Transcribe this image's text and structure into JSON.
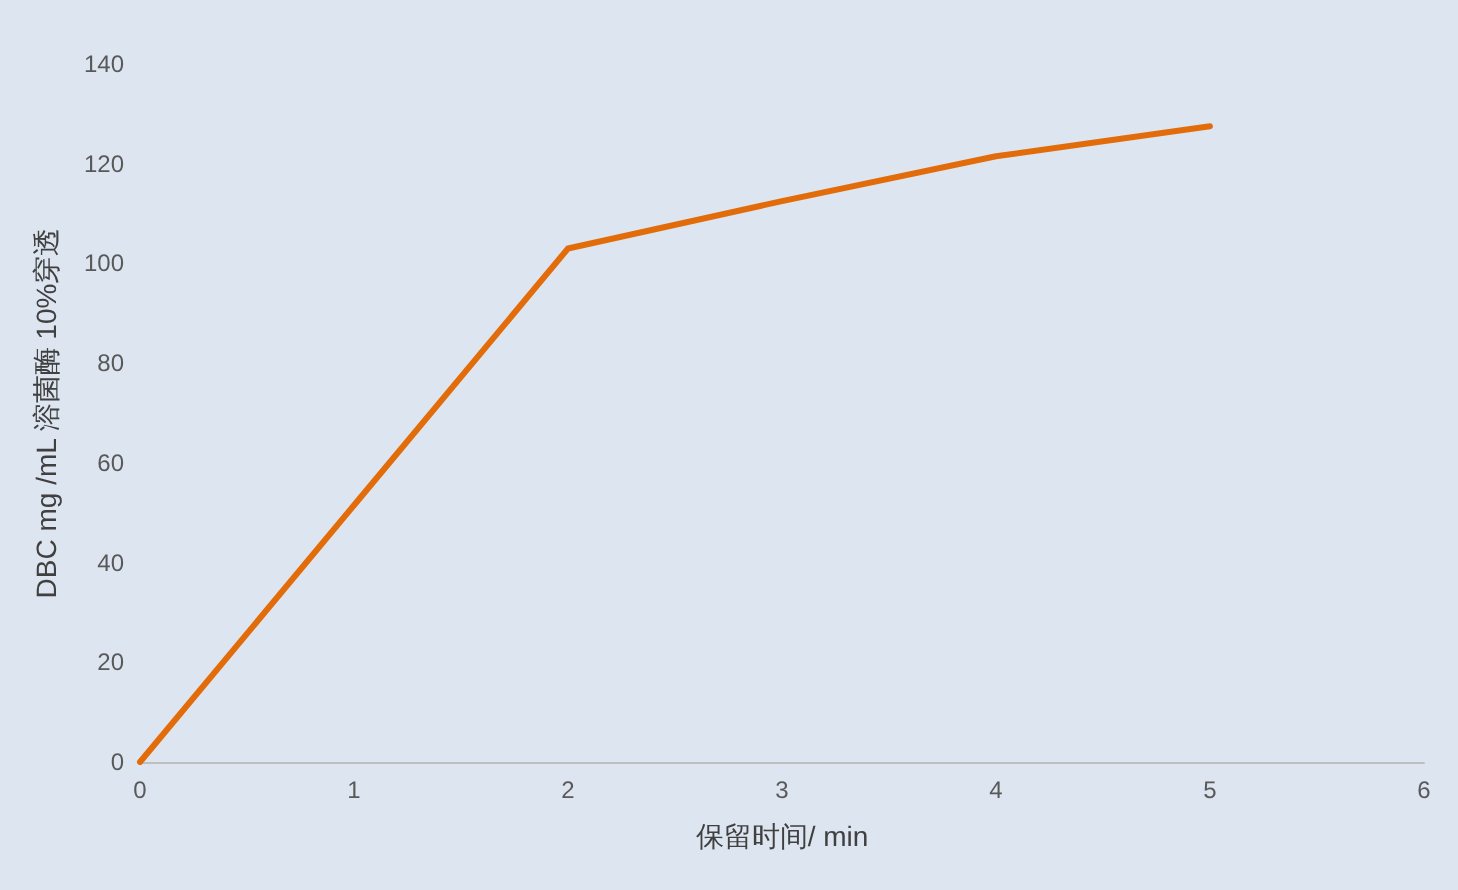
{
  "chart_data": {
    "type": "line",
    "xlabel": "保留时间/ min",
    "ylabel": "DBC mg /mL 溶菌酶 10%穿透",
    "x": [
      0,
      1,
      2,
      3,
      4,
      5
    ],
    "series": [
      {
        "color": "#e36c0a",
        "values": [
          0,
          51.5,
          103,
          112.5,
          121.5,
          127.5
        ]
      }
    ],
    "xlim": [
      0,
      6
    ],
    "xticks": [
      0,
      1,
      2,
      3,
      4,
      5,
      6
    ],
    "ylim": [
      0,
      140
    ],
    "yticks": [
      0,
      20,
      40,
      60,
      80,
      100,
      120,
      140
    ],
    "grid": false,
    "marker": "none",
    "line_style": "solid"
  }
}
